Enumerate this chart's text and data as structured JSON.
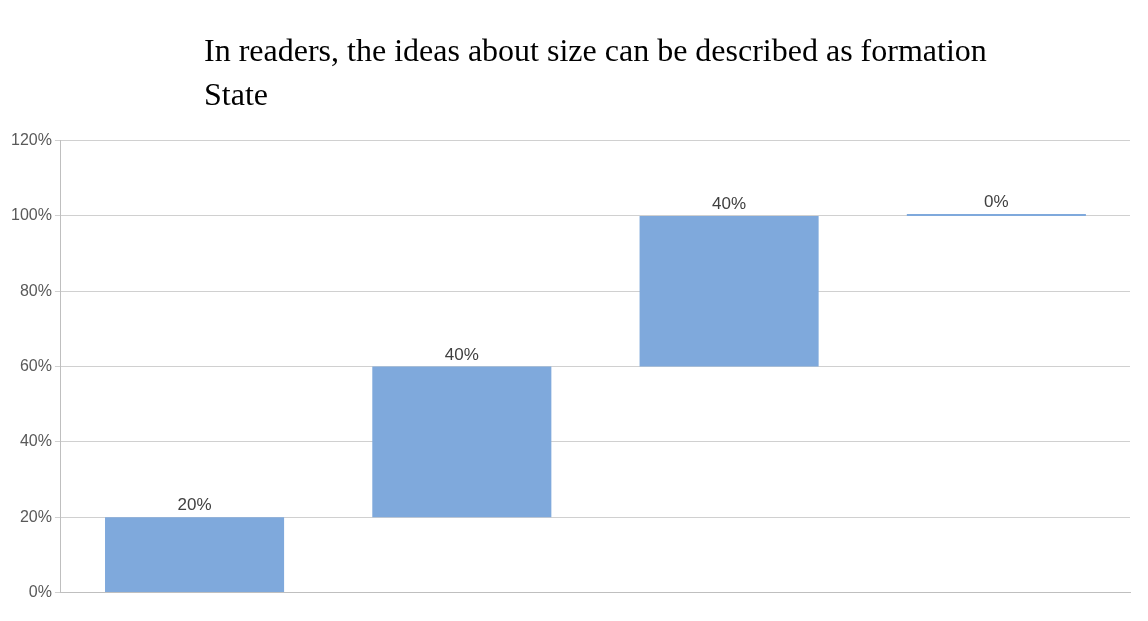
{
  "chart_data": {
    "type": "bar",
    "title": "In readers, the ideas about size can be described as formation State",
    "categories": [
      null,
      null,
      null,
      null
    ],
    "values": [
      20,
      40,
      40,
      0
    ],
    "base": [
      0,
      20,
      60,
      100
    ],
    "value_labels": [
      "20%",
      "40%",
      "40%",
      "0%"
    ],
    "color": "#7fa9dc",
    "ylim": [
      0,
      120
    ],
    "yticks": [
      {
        "value": 0,
        "label": "0%"
      },
      {
        "value": 20,
        "label": "20%"
      },
      {
        "value": 40,
        "label": "40%"
      },
      {
        "value": 60,
        "label": "60%"
      },
      {
        "value": 80,
        "label": "80%"
      },
      {
        "value": 100,
        "label": "100%"
      },
      {
        "value": 120,
        "label": "120%"
      }
    ],
    "grid": "y"
  }
}
